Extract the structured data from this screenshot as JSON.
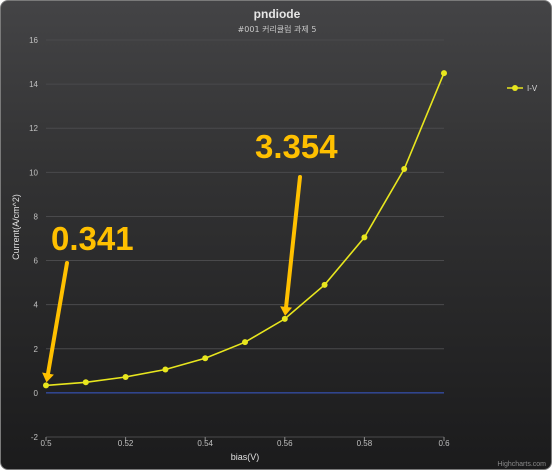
{
  "chart_data": {
    "type": "line",
    "title": "pndiode",
    "subtitle": "#001 커리큘럼 과제 5",
    "xlabel": "bias(V)",
    "ylabel": "Current(A/cm^2)",
    "xlim": [
      0.5,
      0.6
    ],
    "ylim": [
      -2,
      16
    ],
    "x_ticks": [
      "0.5",
      "0.52",
      "0.54",
      "0.56",
      "0.58",
      "0.6"
    ],
    "y_ticks": [
      "-2",
      "0",
      "2",
      "4",
      "6",
      "8",
      "10",
      "12",
      "14",
      "16"
    ],
    "grid": true,
    "legend_position": "right",
    "series": [
      {
        "name": "I-V",
        "color": "#e8e61e",
        "x": [
          0.5,
          0.51,
          0.52,
          0.53,
          0.54,
          0.55,
          0.56,
          0.57,
          0.58,
          0.59,
          0.6
        ],
        "y": [
          0.341,
          0.48,
          0.72,
          1.06,
          1.57,
          2.3,
          3.354,
          4.9,
          7.05,
          10.15,
          14.5
        ]
      }
    ],
    "zero_line_color": "#3a5bd0",
    "annotations": [
      {
        "label": "0.341",
        "x": 0.5,
        "y": 0.341,
        "color": "#ffc000"
      },
      {
        "label": "3.354",
        "x": 0.56,
        "y": 3.354,
        "color": "#ffc000"
      }
    ],
    "credits": "Highcharts.com"
  }
}
